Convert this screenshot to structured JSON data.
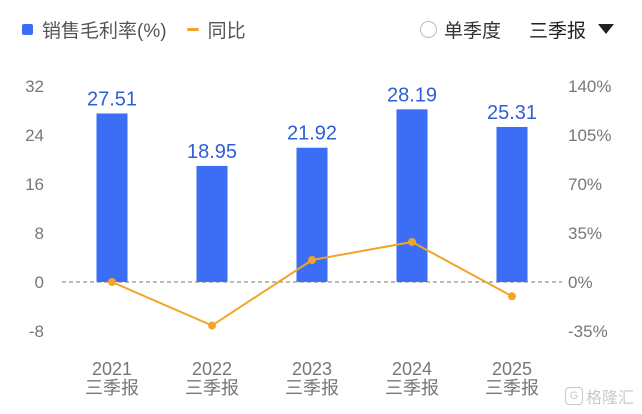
{
  "legend": {
    "bar_label": "销售毛利率(%)",
    "line_label": "同比"
  },
  "controls": {
    "single_quarter_label": "单季度",
    "period_select": "三季报"
  },
  "watermark": {
    "logo_text": "G",
    "text": "格隆汇"
  },
  "colors": {
    "bar": "#3b6ef5",
    "line": "#f2a427",
    "bar_value_text": "#2f5fd8",
    "axis_text": "#777777",
    "grid": "#e6e6e6"
  },
  "chart_data": {
    "type": "bar",
    "categories": [
      "2021\n三季报",
      "2022\n三季报",
      "2023\n三季报",
      "2024\n三季报",
      "2025\n三季报"
    ],
    "series": [
      {
        "name": "销售毛利率(%)",
        "type": "bar",
        "axis": "left",
        "values": [
          27.51,
          18.95,
          21.92,
          28.19,
          25.31
        ]
      },
      {
        "name": "同比",
        "type": "line",
        "axis": "right",
        "values": [
          0.0,
          -31.1,
          15.7,
          28.6,
          -10.2
        ]
      }
    ],
    "y_left": {
      "ticks": [
        32,
        24,
        16,
        8,
        0,
        -8
      ],
      "ylim": [
        -8,
        32
      ]
    },
    "y_right": {
      "ticks": [
        "140%",
        "105%",
        "70%",
        "35%",
        "0%",
        "-35%"
      ],
      "values": [
        140,
        105,
        70,
        35,
        0,
        -35
      ],
      "ylim": [
        -35,
        140
      ]
    },
    "zero_line": "dashed",
    "grid": false
  }
}
